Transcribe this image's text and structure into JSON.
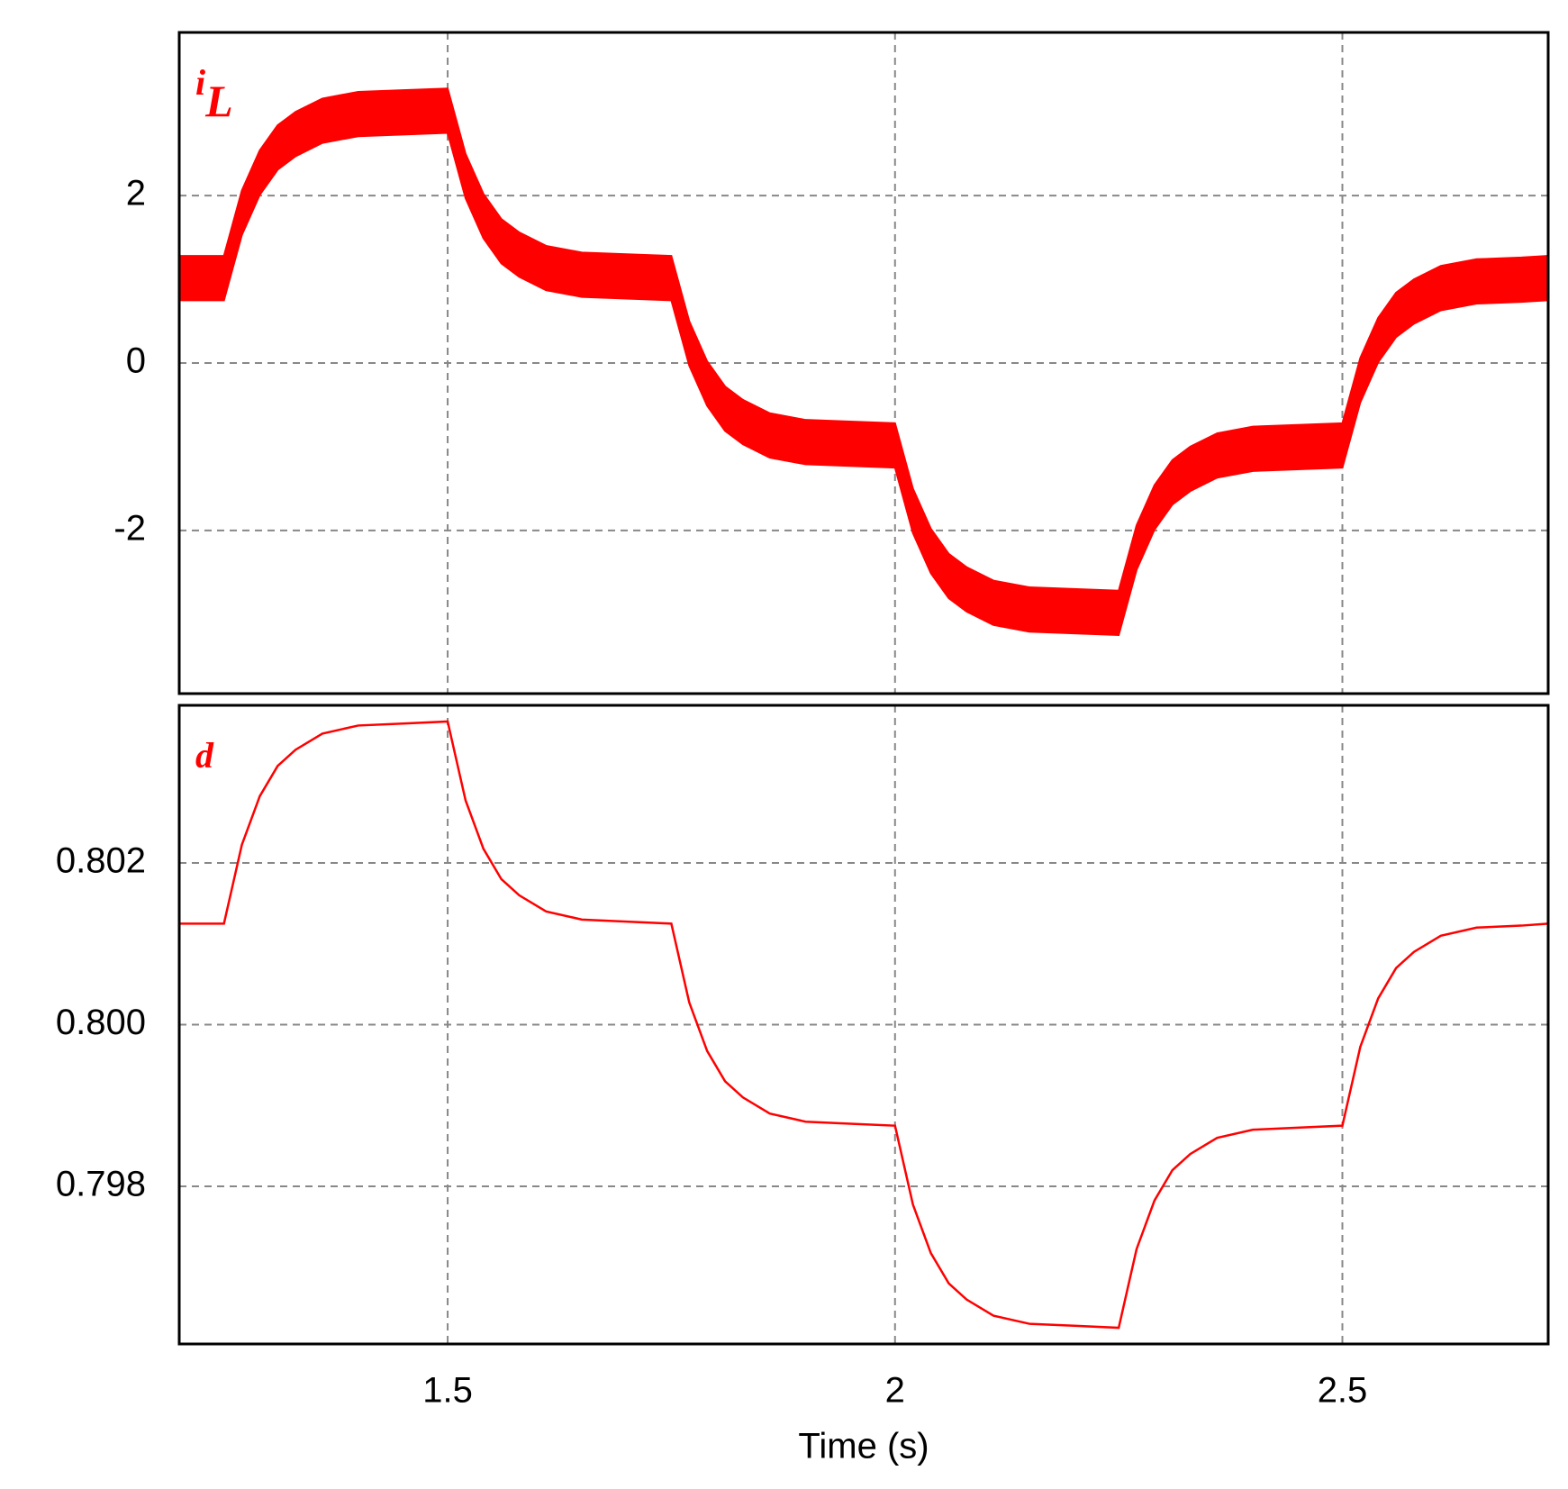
{
  "chart_data": [
    {
      "type": "band",
      "label": "i",
      "label_sub": "L",
      "color": "#ff0000",
      "x": [
        1.2,
        1.25,
        1.27,
        1.29,
        1.31,
        1.33,
        1.36,
        1.4,
        1.45,
        1.5,
        1.52,
        1.54,
        1.56,
        1.58,
        1.61,
        1.65,
        1.7,
        1.75,
        1.77,
        1.79,
        1.81,
        1.83,
        1.86,
        1.9,
        1.95,
        2.0,
        2.02,
        2.04,
        2.06,
        2.08,
        2.11,
        2.15,
        2.2,
        2.25,
        2.27,
        2.29,
        2.31,
        2.33,
        2.36,
        2.4,
        2.45,
        2.5,
        2.52,
        2.54,
        2.56,
        2.58,
        2.61,
        2.65,
        2.7,
        2.73
      ],
      "upper": [
        1.28,
        1.28,
        2.06,
        2.54,
        2.84,
        3.0,
        3.16,
        3.24,
        3.26,
        3.28,
        2.5,
        2.02,
        1.72,
        1.56,
        1.4,
        1.32,
        1.3,
        1.28,
        0.5,
        0.02,
        -0.28,
        -0.44,
        -0.6,
        -0.68,
        -0.7,
        -0.72,
        -1.5,
        -1.98,
        -2.28,
        -2.44,
        -2.6,
        -2.68,
        -2.7,
        -2.72,
        -1.94,
        -1.46,
        -1.16,
        -1.0,
        -0.84,
        -0.76,
        -0.74,
        -0.72,
        0.06,
        0.54,
        0.84,
        1.0,
        1.16,
        1.24,
        1.26,
        1.28
      ],
      "lower": [
        0.75,
        0.75,
        1.53,
        2.01,
        2.31,
        2.47,
        2.63,
        2.71,
        2.73,
        2.75,
        1.97,
        1.49,
        1.19,
        1.03,
        0.87,
        0.79,
        0.77,
        0.75,
        -0.03,
        -0.51,
        -0.81,
        -0.97,
        -1.13,
        -1.21,
        -1.23,
        -1.25,
        -2.03,
        -2.51,
        -2.81,
        -2.97,
        -3.13,
        -3.21,
        -3.23,
        -3.25,
        -2.47,
        -1.99,
        -1.69,
        -1.53,
        -1.37,
        -1.29,
        -1.27,
        -1.25,
        -0.47,
        0.01,
        0.31,
        0.47,
        0.63,
        0.71,
        0.73,
        0.75
      ],
      "xlim": [
        1.2,
        2.73
      ],
      "xticks": [
        1.5,
        2,
        2.5
      ],
      "ylim": [
        -3.95,
        3.95
      ],
      "yticks": [
        -2,
        0,
        2
      ],
      "grid": true
    },
    {
      "type": "line",
      "label": "d",
      "color": "#ff0000",
      "xlabel": "Time (s)",
      "x": [
        1.2,
        1.25,
        1.27,
        1.29,
        1.31,
        1.33,
        1.36,
        1.4,
        1.45,
        1.5,
        1.52,
        1.54,
        1.56,
        1.58,
        1.61,
        1.65,
        1.7,
        1.75,
        1.77,
        1.79,
        1.81,
        1.83,
        1.86,
        1.9,
        1.95,
        2.0,
        2.02,
        2.04,
        2.06,
        2.08,
        2.11,
        2.15,
        2.2,
        2.25,
        2.27,
        2.29,
        2.31,
        2.33,
        2.36,
        2.4,
        2.45,
        2.5,
        2.52,
        2.54,
        2.56,
        2.58,
        2.61,
        2.65,
        2.7,
        2.73
      ],
      "values": [
        0.80125,
        0.80125,
        0.802225,
        0.802825,
        0.8032,
        0.8034,
        0.8036,
        0.8037,
        0.803725,
        0.80375,
        0.802775,
        0.802175,
        0.8018,
        0.8016,
        0.8014,
        0.8013,
        0.801275,
        0.80125,
        0.800275,
        0.799675,
        0.7993,
        0.7991,
        0.7989,
        0.7988,
        0.798775,
        0.79875,
        0.797775,
        0.797175,
        0.7968,
        0.7966,
        0.7964,
        0.7963,
        0.796275,
        0.79625,
        0.797225,
        0.797825,
        0.7982,
        0.7984,
        0.7986,
        0.7987,
        0.798725,
        0.79875,
        0.799725,
        0.800325,
        0.8007,
        0.8009,
        0.8011,
        0.8012,
        0.801225,
        0.80125
      ],
      "xlim": [
        1.2,
        2.73
      ],
      "xticks": [
        1.5,
        2,
        2.5
      ],
      "ylim": [
        0.79605,
        0.80395
      ],
      "yticks": [
        0.798,
        {
          "value": 0.8,
          "label": "0.800"
        },
        0.802
      ],
      "grid": true
    }
  ]
}
